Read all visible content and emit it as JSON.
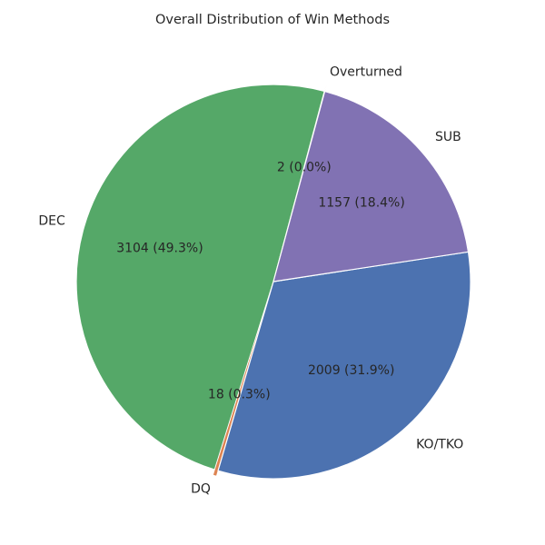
{
  "chart_data": {
    "type": "pie",
    "title": "Overall Distribution of Win Methods",
    "slices": [
      {
        "label": "DEC",
        "value": 3104,
        "percent": 49.3,
        "autopct": "3104 (49.3%)",
        "color": "#55a868"
      },
      {
        "label": "DQ",
        "value": 18,
        "percent": 0.3,
        "autopct": "18 (0.3%)",
        "color": "#dd8452"
      },
      {
        "label": "KO/TKO",
        "value": 2009,
        "percent": 31.9,
        "autopct": "2009 (31.9%)",
        "color": "#4c72b0"
      },
      {
        "label": "SUB",
        "value": 1157,
        "percent": 18.4,
        "autopct": "1157 (18.4%)",
        "color": "#8172b3"
      },
      {
        "label": "Overturned",
        "value": 2,
        "percent": 0.0,
        "autopct": "2 (0.0%)",
        "color": "#c44e52"
      }
    ],
    "start_angle_deg": 75,
    "direction": "counterclockwise",
    "legend": "none"
  }
}
